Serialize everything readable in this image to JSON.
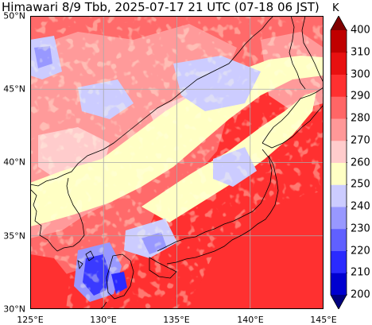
{
  "title": "Himawari 8/9 Tbb, 2025-07-17 21 UTC (07-18 06 JST)",
  "axes": {
    "lon_ticks": [
      "125°E",
      "130°E",
      "135°E",
      "140°E",
      "145°E"
    ],
    "lat_ticks": [
      "30°N",
      "35°N",
      "40°N",
      "45°N",
      "50°N"
    ],
    "lon_range": [
      125,
      145
    ],
    "lat_range": [
      30,
      50
    ],
    "grid": true
  },
  "colorbar": {
    "unit": "K",
    "ticks": [
      "200",
      "210",
      "220",
      "230",
      "240",
      "250",
      "260",
      "270",
      "280",
      "290",
      "300",
      "310",
      "400"
    ],
    "colors": [
      "#00007f",
      "#0000d0",
      "#2a2aff",
      "#6060ff",
      "#9898ff",
      "#ccccff",
      "#ffffc4",
      "#ffcccc",
      "#ff9898",
      "#ff6666",
      "#ff3030",
      "#e81010",
      "#c00000",
      "#800000"
    ]
  },
  "colors": {
    "sea_red": "#ff3030",
    "warm": "#ff6a6a",
    "pink": "#ff9a9a",
    "light_pink": "#ffcccc",
    "yellow": "#ffffc4",
    "lav": "#ccccff",
    "blue": "#9898ff",
    "deep_blue": "#3a3aff",
    "coast": "#000000",
    "grid": "#aaaaaa"
  }
}
